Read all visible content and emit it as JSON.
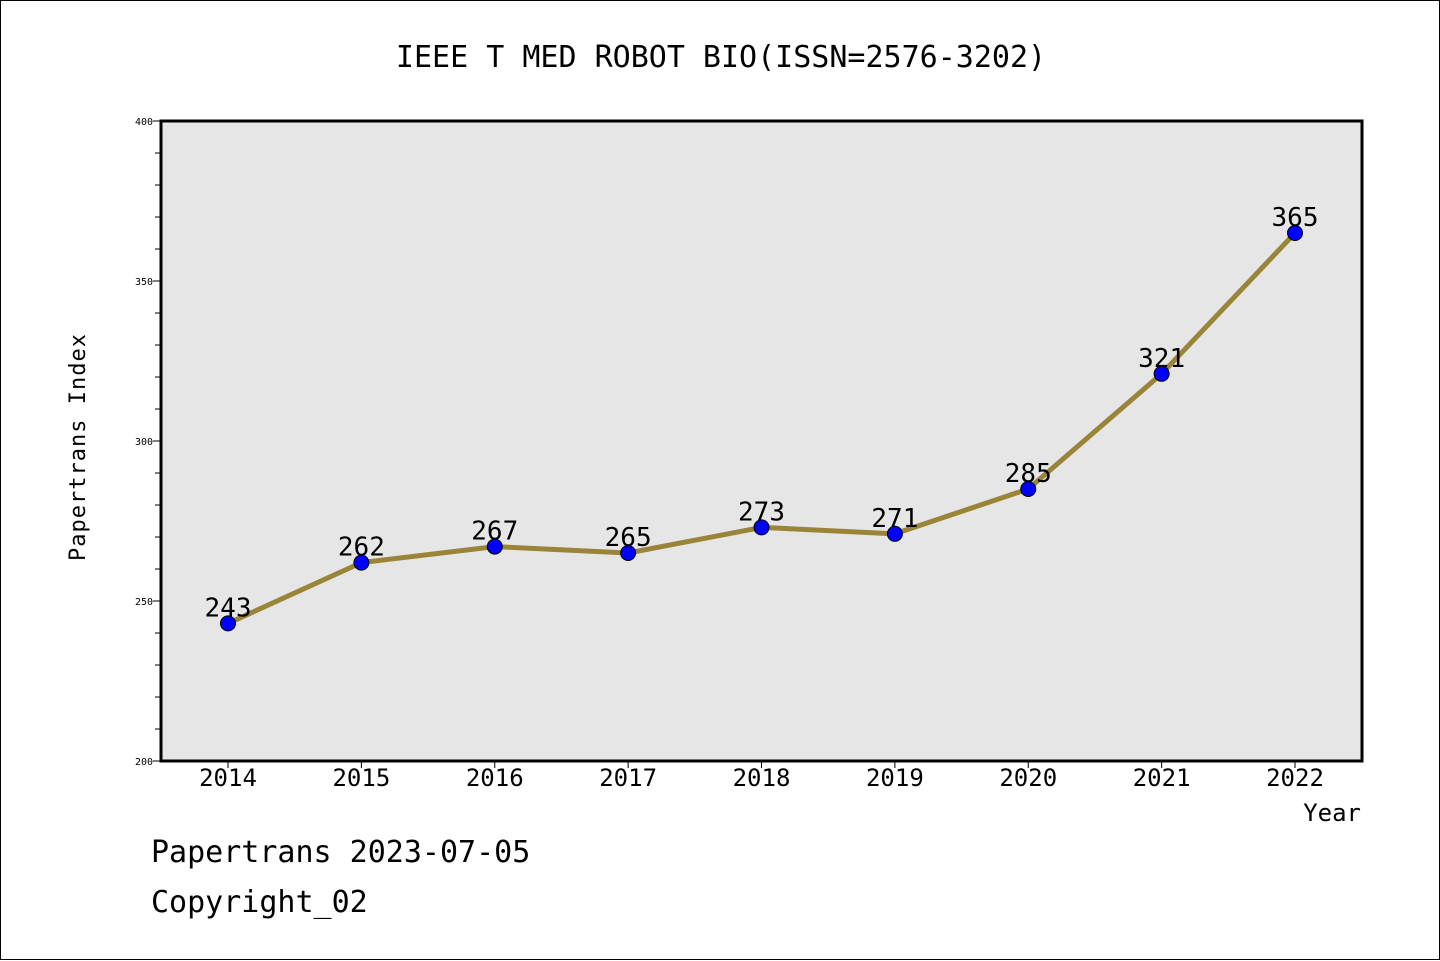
{
  "footer": {
    "source": "Papertrans 2023-07-05",
    "copyright": "Copyright_02"
  },
  "chart_data": {
    "type": "line",
    "title": "IEEE T MED ROBOT BIO(ISSN=2576-3202)",
    "xlabel": "Year",
    "ylabel": "Papertrans Index",
    "categories": [
      "2014",
      "2015",
      "2016",
      "2017",
      "2018",
      "2019",
      "2020",
      "2021",
      "2022"
    ],
    "values": [
      243,
      262,
      267,
      265,
      273,
      271,
      285,
      321,
      365
    ],
    "data_labels": [
      "243",
      "262",
      "267",
      "265",
      "273",
      "271",
      "285",
      "321",
      "365"
    ],
    "ylim": [
      200,
      400
    ],
    "yticks": [
      200,
      250,
      300,
      350,
      400
    ],
    "ytick_labels": [
      "200",
      "250",
      "300",
      "350",
      "400"
    ],
    "grid": false,
    "plot_background": "#e6e6e6",
    "line_color": "#9a8438",
    "marker_color": "#0000ff"
  }
}
